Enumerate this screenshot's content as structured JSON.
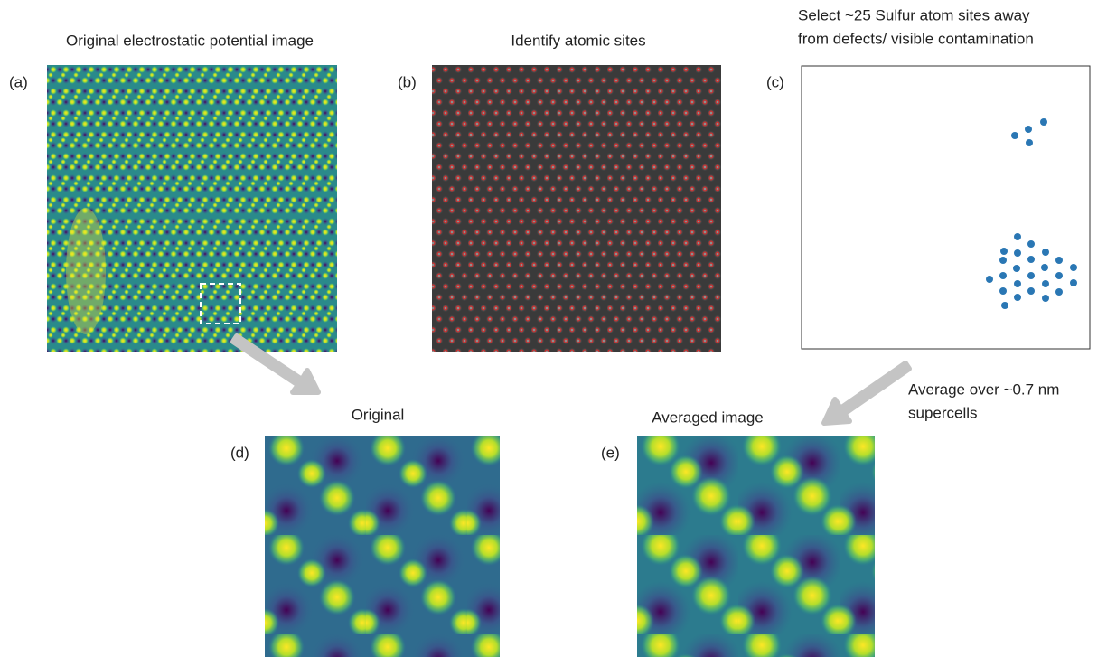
{
  "panels": [
    {
      "label": "(a)",
      "title": "Original electrostatic potential image"
    },
    {
      "label": "(b)",
      "title": "Identify atomic sites"
    },
    {
      "label": "(c)",
      "title": [
        "Select ~25 Sulfur atom sites away",
        "from defects/ visible contamination"
      ]
    },
    {
      "label": "(d)",
      "title": "Original"
    },
    {
      "label": "(e)",
      "title": "Averaged image"
    }
  ],
  "annotation": [
    "Average over ~0.7 nm",
    "supercells"
  ]
}
